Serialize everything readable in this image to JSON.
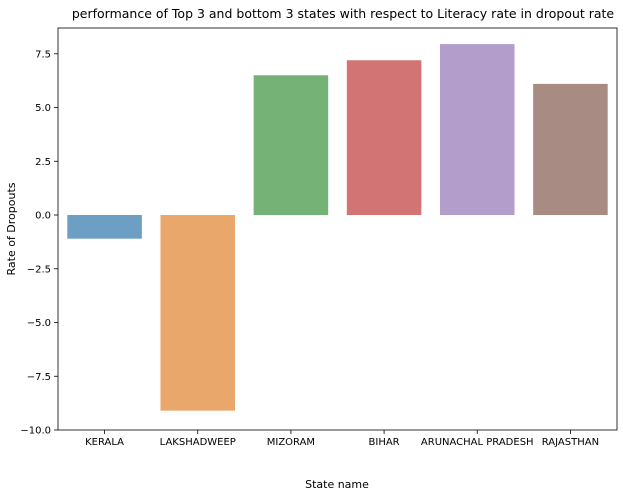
{
  "chart_data": {
    "type": "bar",
    "title": "performance of Top 3 and bottom 3 states with respect to Literacy rate in dropout rate",
    "xlabel": "State name",
    "ylabel": "Rate of Dropouts",
    "categories": [
      "KERALA",
      "LAKSHADWEEP",
      "MIZORAM",
      "BIHAR",
      "ARUNACHAL PRADESH",
      "RAJASTHAN"
    ],
    "values": [
      -1.1,
      -9.1,
      6.5,
      7.2,
      7.95,
      6.1
    ],
    "colors": [
      "#6d9ec3",
      "#e9a76b",
      "#74b276",
      "#d37474",
      "#b39dca",
      "#a88c83"
    ],
    "ylim": [
      -10.0,
      8.7
    ],
    "yticks": [
      -10.0,
      -7.5,
      -5.0,
      -2.5,
      0.0,
      2.5,
      5.0,
      7.5
    ],
    "ytick_labels": [
      "−10.0",
      "−7.5",
      "−5.0",
      "−2.5",
      "0.0",
      "2.5",
      "5.0",
      "7.5"
    ],
    "grid": false,
    "legend": false
  }
}
